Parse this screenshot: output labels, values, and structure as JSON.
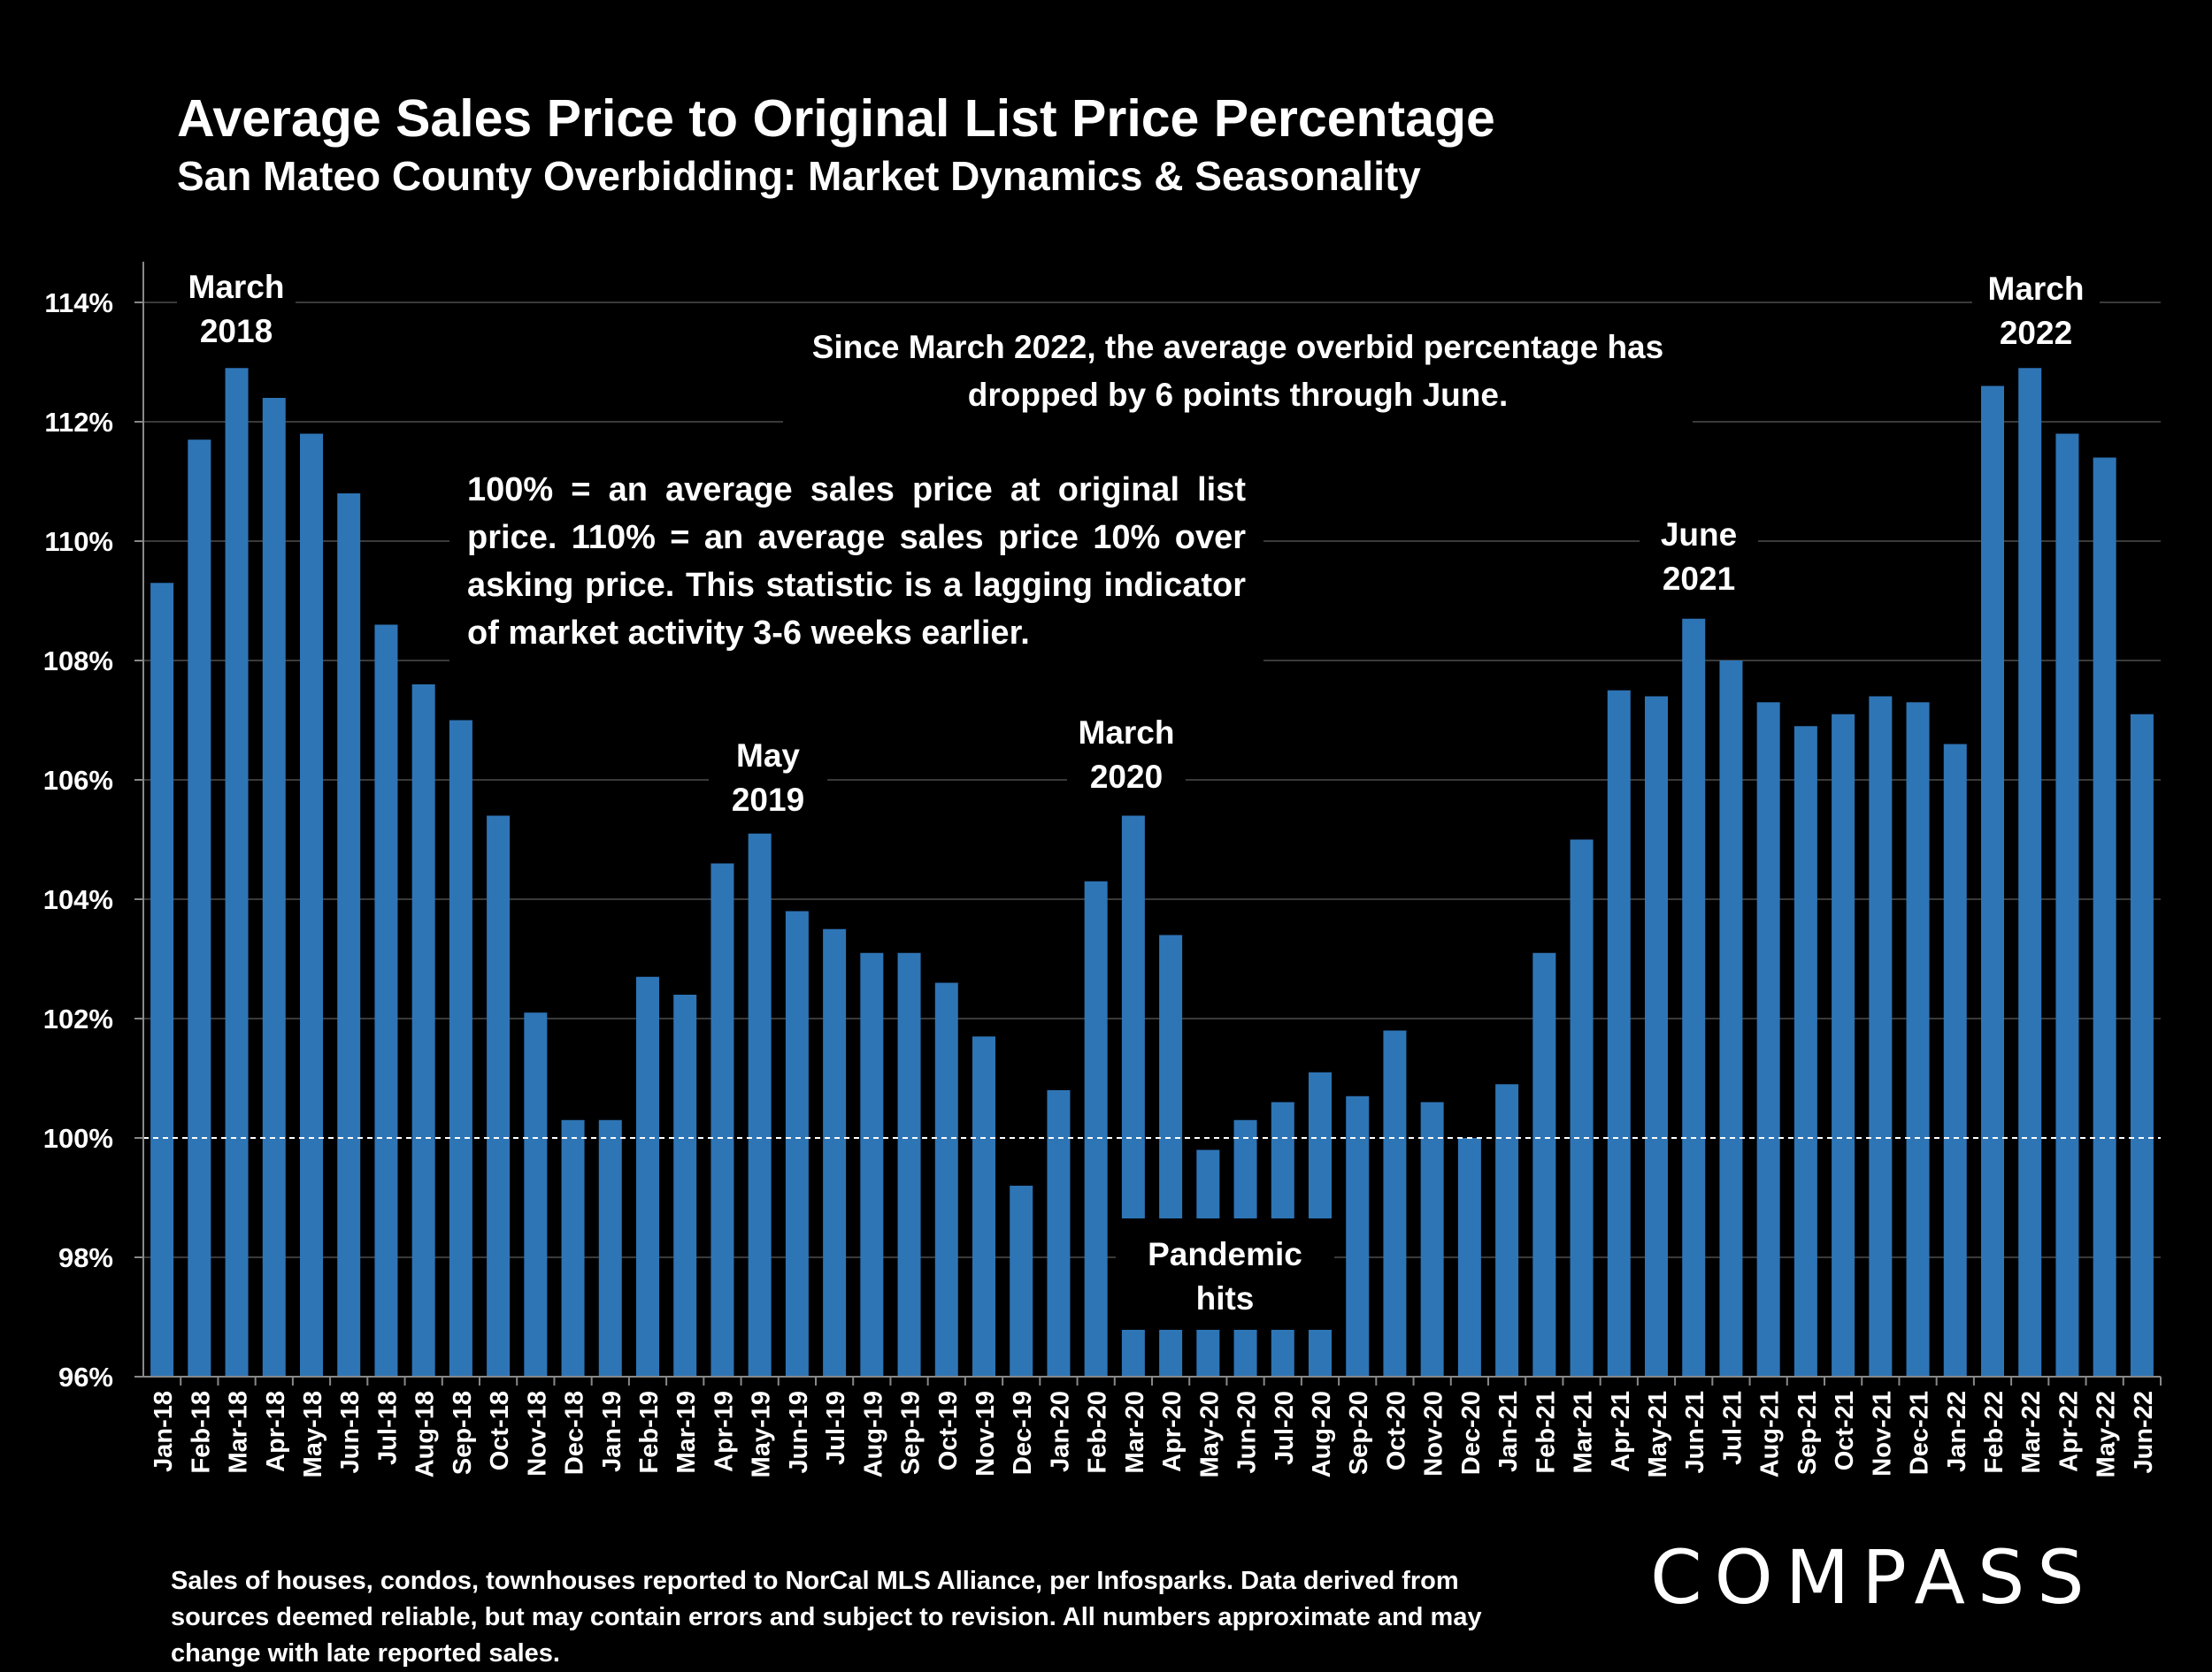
{
  "title": "Average Sales Price to Original List Price Percentage",
  "subtitle": "San Mateo County Overbidding: Market Dynamics & Seasonality",
  "annotations": {
    "march2018": "March 2018",
    "may2019": "May 2019",
    "march2020": "March 2020",
    "june2021": "June 2021",
    "march2022": "March 2022",
    "overbid_note": "Since March 2022, the average overbid percentage has dropped by 6 points through June.",
    "definition": "100% = an average sales price at original list price. 110% = an average sales price 10% over asking price. This statistic is a lagging indicator of market activity 3-6 weeks earlier.",
    "pandemic": "Pandemic hits"
  },
  "footer": "Sales of houses, condos, townhouses reported to NorCal MLS Alliance, per Infosparks. Data derived from sources deemed reliable, but may contain errors and subject to revision. All numbers approximate and may change with late reported sales.",
  "logo": "COMPASS",
  "colors": {
    "bar": "#2e75b6",
    "background": "#000000",
    "text": "#ffffff"
  },
  "chart_data": {
    "type": "bar",
    "ylim": [
      96,
      114
    ],
    "yticks": [
      "96%",
      "98%",
      "100%",
      "102%",
      "104%",
      "106%",
      "108%",
      "110%",
      "112%",
      "114%"
    ],
    "reference_line": 100,
    "grid": true,
    "categories": [
      "Jan-18",
      "Feb-18",
      "Mar-18",
      "Apr-18",
      "May-18",
      "Jun-18",
      "Jul-18",
      "Aug-18",
      "Sep-18",
      "Oct-18",
      "Nov-18",
      "Dec-18",
      "Jan-19",
      "Feb-19",
      "Mar-19",
      "Apr-19",
      "May-19",
      "Jun-19",
      "Jul-19",
      "Aug-19",
      "Sep-19",
      "Oct-19",
      "Nov-19",
      "Dec-19",
      "Jan-20",
      "Feb-20",
      "Mar-20",
      "Apr-20",
      "May-20",
      "Jun-20",
      "Jul-20",
      "Aug-20",
      "Sep-20",
      "Oct-20",
      "Nov-20",
      "Dec-20",
      "Jan-21",
      "Feb-21",
      "Mar-21",
      "Apr-21",
      "May-21",
      "Jun-21",
      "Jul-21",
      "Aug-21",
      "Sep-21",
      "Oct-21",
      "Nov-21",
      "Dec-21",
      "Jan-22",
      "Feb-22",
      "Mar-22",
      "Apr-22",
      "May-22",
      "Jun-22"
    ],
    "values": [
      109.3,
      111.7,
      112.9,
      112.4,
      111.8,
      110.8,
      108.6,
      107.6,
      107.0,
      105.4,
      102.1,
      100.3,
      100.3,
      102.7,
      102.4,
      104.6,
      105.1,
      103.8,
      103.5,
      103.1,
      103.1,
      102.6,
      101.7,
      99.2,
      100.8,
      104.3,
      105.4,
      103.4,
      99.8,
      100.3,
      100.6,
      101.1,
      100.7,
      101.8,
      100.6,
      100.0,
      100.9,
      103.1,
      105.0,
      107.5,
      107.4,
      108.7,
      108.0,
      107.3,
      106.9,
      107.1,
      107.4,
      107.3,
      106.6,
      112.6,
      112.9,
      111.8,
      111.4,
      107.1
    ]
  }
}
